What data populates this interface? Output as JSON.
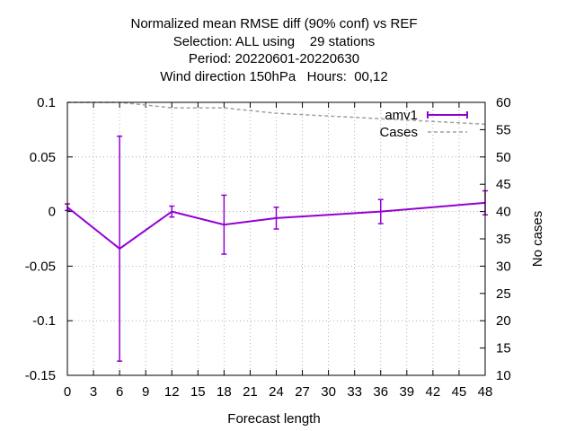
{
  "chart_data": {
    "type": "line",
    "title_lines": [
      "Normalized mean RMSE diff (90% conf) vs REF",
      "Selection: ALL using    29 stations",
      "Period: 20220601-20220630",
      "Wind direction 150hPa   Hours:  00,12"
    ],
    "xlabel": "Forecast length",
    "ylabel": "",
    "y2label": "No cases",
    "xlim": [
      0,
      48
    ],
    "ylim": [
      -0.15,
      0.1
    ],
    "y2lim": [
      10,
      60
    ],
    "x_ticks": [
      0,
      3,
      6,
      9,
      12,
      15,
      18,
      21,
      24,
      27,
      30,
      33,
      36,
      39,
      42,
      45,
      48
    ],
    "y_ticks": [
      "0.1",
      "0.05",
      "0",
      "-0.05",
      "-0.1",
      "-0.15"
    ],
    "y_tick_values": [
      0.1,
      0.05,
      0,
      -0.05,
      -0.1,
      -0.15
    ],
    "y2_ticks": [
      60,
      55,
      50,
      45,
      40,
      35,
      30,
      25,
      20,
      15,
      10
    ],
    "grid": true,
    "legend_position": "top-right",
    "series": [
      {
        "name": "amv1",
        "color": "#9400d3",
        "style": "errorbars",
        "x": [
          0,
          6,
          12,
          18,
          24,
          36,
          48
        ],
        "values": [
          0.004,
          -0.034,
          0.0,
          -0.012,
          -0.006,
          0.0,
          0.008
        ],
        "err_low": [
          0.001,
          -0.137,
          -0.005,
          -0.039,
          -0.016,
          -0.011,
          -0.003
        ],
        "err_high": [
          0.007,
          0.069,
          0.005,
          0.015,
          0.004,
          0.011,
          0.019
        ]
      },
      {
        "name": "Cases",
        "color": "#a0a0a0",
        "style": "dashed",
        "axis": "y2",
        "x": [
          0,
          6,
          12,
          18,
          24,
          36,
          48
        ],
        "values": [
          60,
          60,
          59,
          59,
          58,
          57,
          56
        ]
      }
    ]
  }
}
